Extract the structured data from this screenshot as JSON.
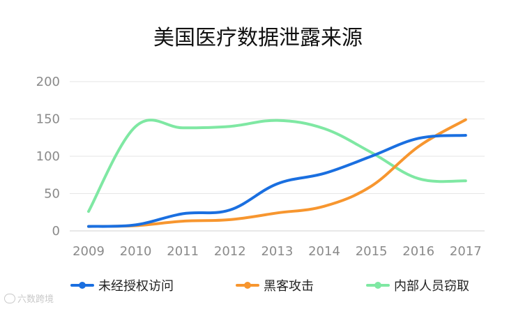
{
  "chart_data": {
    "type": "line",
    "title": "美国医疗数据泄露来源",
    "xlabel": "",
    "ylabel": "",
    "categories": [
      "2009",
      "2010",
      "2011",
      "2012",
      "2013",
      "2014",
      "2015",
      "2016",
      "2017"
    ],
    "ylim": [
      0,
      200
    ],
    "yticks": [
      "0",
      "50",
      "100",
      "150",
      "200"
    ],
    "grid": true,
    "legend_position": "bottom",
    "smooth": true,
    "series": [
      {
        "name": "未经授权访问",
        "color": "#1a6fe0",
        "values": [
          6,
          8,
          23,
          28,
          63,
          77,
          100,
          124,
          128
        ]
      },
      {
        "name": "黑客攻击",
        "color": "#f7962f",
        "values": [
          6,
          7,
          13,
          15,
          24,
          33,
          60,
          113,
          149
        ]
      },
      {
        "name": "内部人员窃取",
        "color": "#7fe8a3",
        "values": [
          26,
          140,
          138,
          140,
          148,
          137,
          105,
          70,
          67
        ]
      }
    ]
  },
  "watermark": {
    "icon": "logo-icon",
    "text": "六数跨境"
  }
}
